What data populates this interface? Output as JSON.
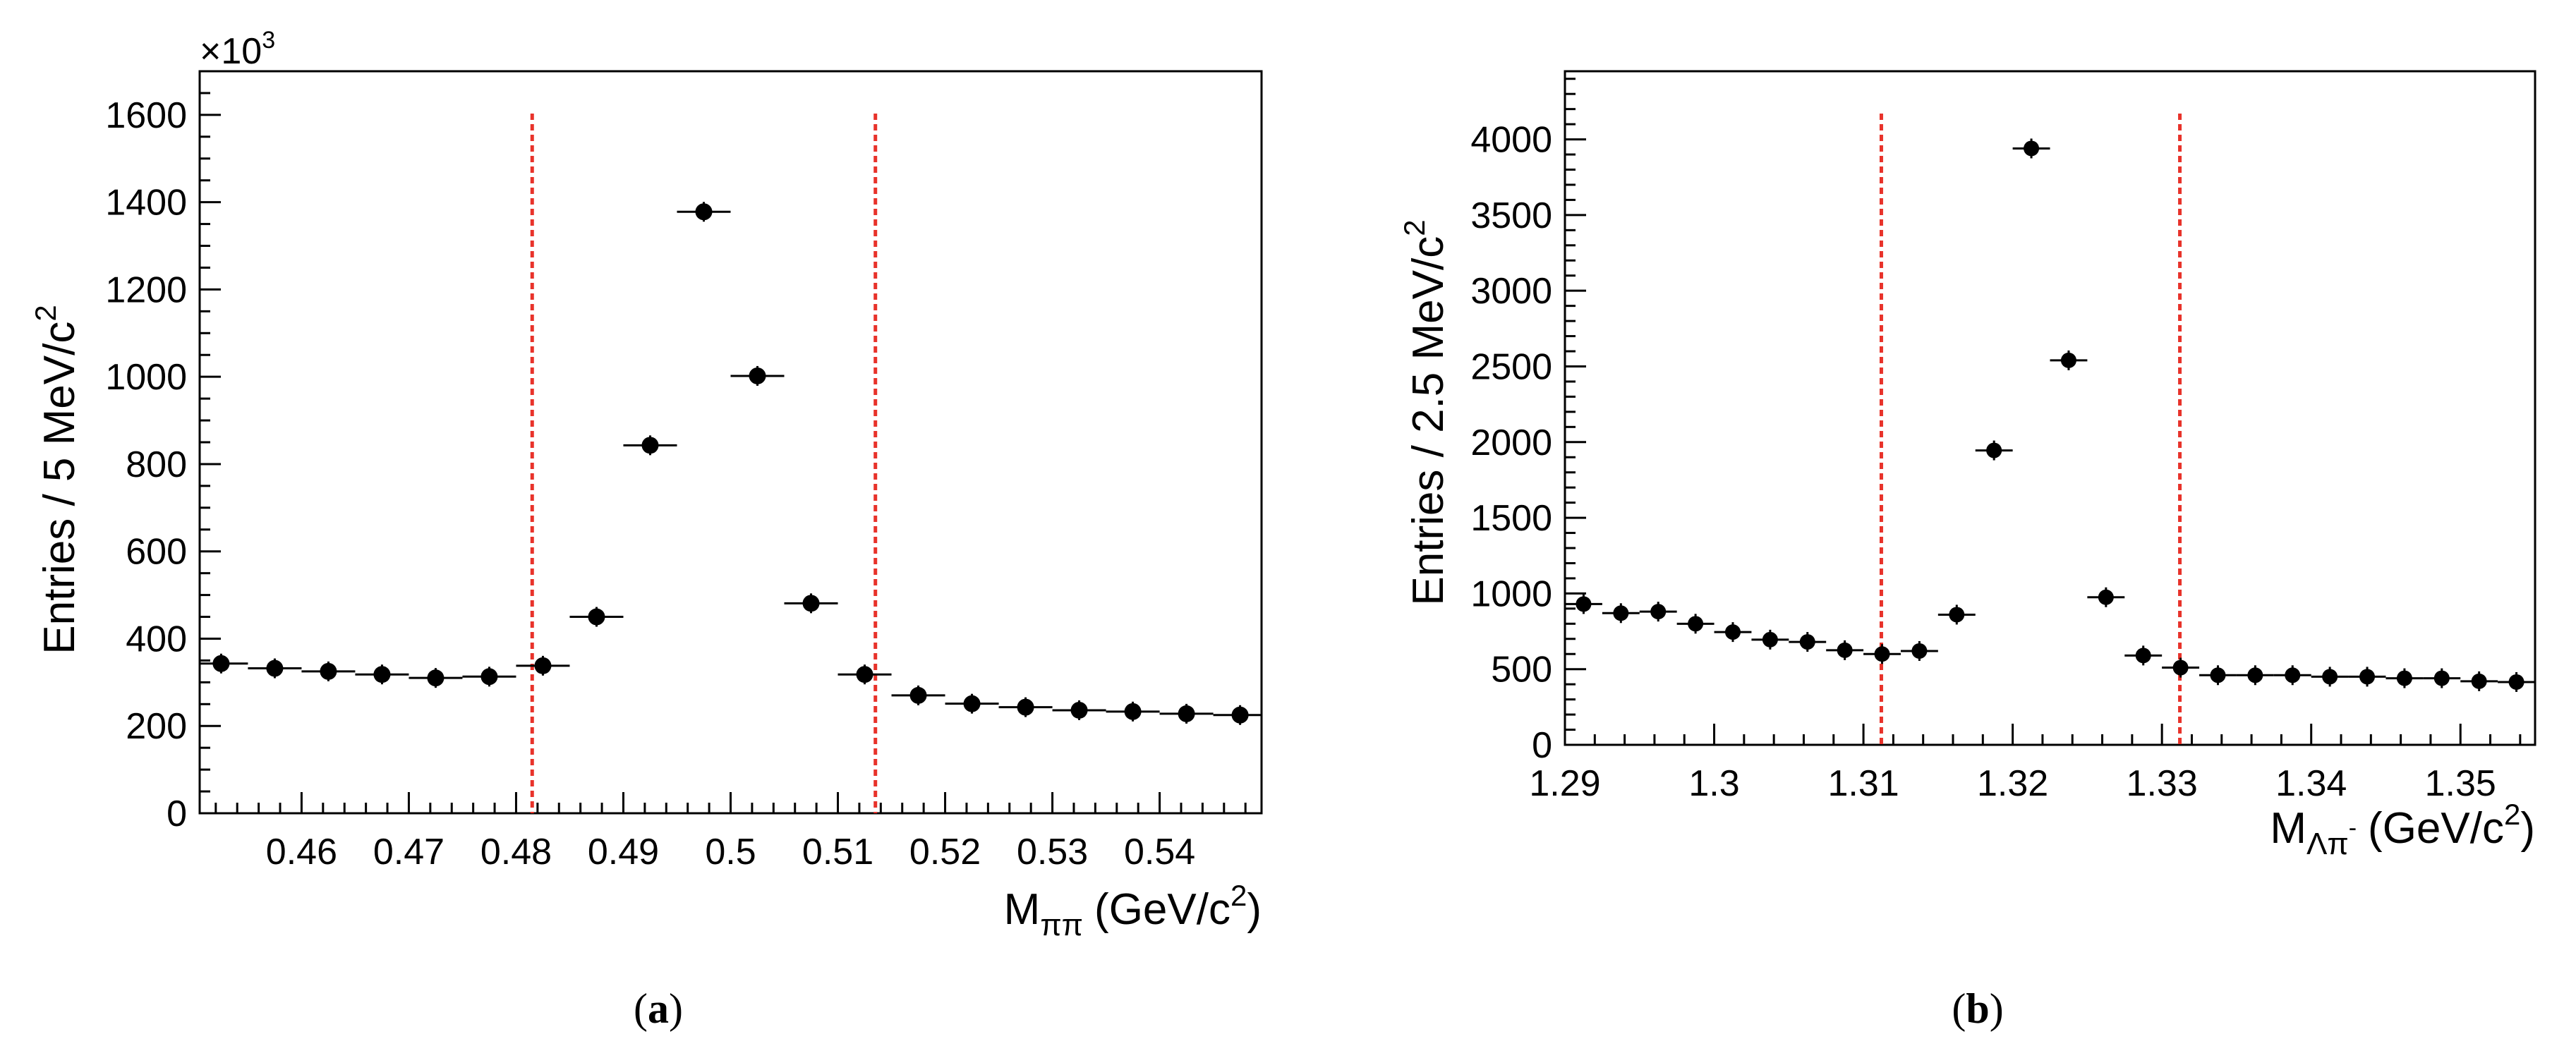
{
  "chart_data": [
    {
      "type": "scatter",
      "subtype": "histogram-points-with-errors",
      "panel_label": "(a)",
      "panel_letter": "a",
      "xlabel_main": "M",
      "xlabel_sub": "ππ",
      "xlabel_unit": "(GeV/c",
      "xlabel_unit_exp": "2",
      "xlabel_close": ")",
      "ylabel": "Entries / 5 MeV/c",
      "ylabel_exp": "2",
      "y_multiplier": "×10",
      "y_multiplier_exp": "3",
      "xlim": [
        0.4505,
        0.5495
      ],
      "ylim": [
        0,
        1700
      ],
      "bin_width": 0.005,
      "xticks": [
        0.46,
        0.47,
        0.48,
        0.49,
        0.5,
        0.51,
        0.52,
        0.53,
        0.54
      ],
      "xtick_labels": [
        "0.46",
        "0.47",
        "0.48",
        "0.49",
        "0.5",
        "0.51",
        "0.52",
        "0.53",
        "0.54"
      ],
      "yticks": [
        0,
        200,
        400,
        600,
        800,
        1000,
        1200,
        1400,
        1600
      ],
      "ytick_labels": [
        "0",
        "200",
        "400",
        "600",
        "800",
        "1000",
        "1200",
        "1400",
        "1600"
      ],
      "x": [
        0.4525,
        0.4575,
        0.4625,
        0.4675,
        0.4725,
        0.4775,
        0.4825,
        0.4875,
        0.4925,
        0.4975,
        0.5025,
        0.5075,
        0.5125,
        0.5175,
        0.5225,
        0.5275,
        0.5325,
        0.5375,
        0.5425,
        0.5475
      ],
      "y": [
        343,
        332,
        325,
        318,
        310,
        313,
        338,
        450,
        843,
        1378,
        1002,
        481,
        318,
        270,
        251,
        243,
        236,
        233,
        228,
        225
      ],
      "cut_lines": [
        0.4815,
        0.5135
      ],
      "cut_color": "#e8322a"
    },
    {
      "type": "scatter",
      "subtype": "histogram-points-with-errors",
      "panel_label": "(b)",
      "panel_letter": "b",
      "xlabel_main": "M",
      "xlabel_sub": "Λπ",
      "xlabel_sub_sup": "-",
      "xlabel_unit": "(GeV/c",
      "xlabel_unit_exp": "2",
      "xlabel_close": ")",
      "ylabel": "Entries / 2.5 MeV/c",
      "ylabel_exp": "2",
      "xlim": [
        1.29,
        1.355
      ],
      "ylim": [
        0,
        4450
      ],
      "bin_width": 0.0025,
      "xticks": [
        1.29,
        1.3,
        1.31,
        1.32,
        1.33,
        1.34,
        1.35
      ],
      "xtick_labels": [
        "1.29",
        "1.3",
        "1.31",
        "1.32",
        "1.33",
        "1.34",
        "1.35"
      ],
      "yticks": [
        0,
        500,
        1000,
        1500,
        2000,
        2500,
        3000,
        3500,
        4000
      ],
      "ytick_labels": [
        "0",
        "500",
        "1000",
        "1500",
        "2000",
        "2500",
        "3000",
        "3500",
        "4000"
      ],
      "x": [
        1.29125,
        1.29375,
        1.29625,
        1.29875,
        1.30125,
        1.30375,
        1.30625,
        1.30875,
        1.31125,
        1.31375,
        1.31625,
        1.31875,
        1.32125,
        1.32375,
        1.32625,
        1.32875,
        1.33125,
        1.33375,
        1.33625,
        1.33875,
        1.34125,
        1.34375,
        1.34625,
        1.34875,
        1.35125,
        1.35375
      ],
      "y": [
        930,
        870,
        880,
        800,
        745,
        695,
        680,
        625,
        600,
        620,
        860,
        1945,
        3940,
        2540,
        975,
        590,
        510,
        460,
        460,
        460,
        450,
        450,
        440,
        440,
        420,
        415
      ],
      "cut_lines": [
        1.3112,
        1.3312
      ],
      "cut_color": "#e8322a"
    }
  ]
}
